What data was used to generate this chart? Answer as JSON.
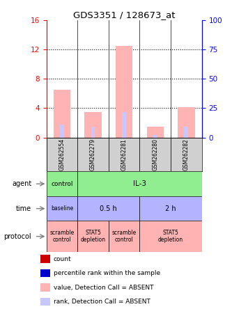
{
  "title": "GDS3351 / 128673_at",
  "samples": [
    "GSM262554",
    "GSM262279",
    "GSM262281",
    "GSM262280",
    "GSM262282"
  ],
  "bar_values": [
    6.5,
    3.5,
    12.5,
    1.5,
    4.1
  ],
  "rank_values": [
    1.8,
    1.5,
    3.5,
    0.3,
    1.5
  ],
  "ylim_left": [
    0,
    16
  ],
  "ylim_right": [
    0,
    100
  ],
  "yticks_left": [
    0,
    4,
    8,
    12,
    16
  ],
  "yticks_right": [
    0,
    25,
    50,
    75,
    100
  ],
  "bar_color": "#ffb3b3",
  "rank_color": "#c8c8ff",
  "agent_color": "#90ee90",
  "time_color": "#b3b3ff",
  "protocol_color": "#ffb3b3",
  "sample_box_color": "#d0d0d0",
  "legend_colors": [
    "#cc0000",
    "#0000cc",
    "#ffb3b3",
    "#c8c8ff"
  ],
  "legend_labels": [
    "count",
    "percentile rank within the sample",
    "value, Detection Call = ABSENT",
    "rank, Detection Call = ABSENT"
  ]
}
